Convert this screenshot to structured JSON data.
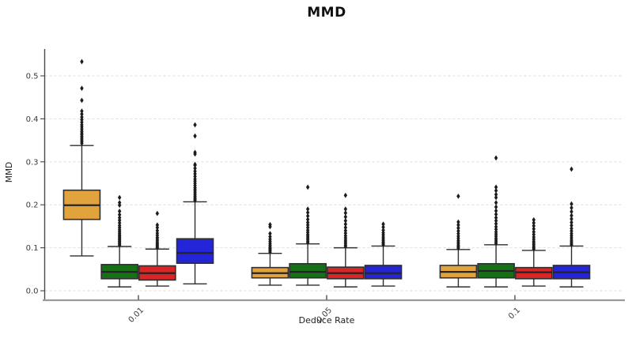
{
  "page": {
    "title": "MMD"
  },
  "chart_data": {
    "type": "boxplot",
    "title": "MMD",
    "xlabel": "Deduce Rate",
    "ylabel": "MMD",
    "categories": [
      "0.01",
      "0.05",
      "0.1"
    ],
    "yticks": [
      "0.0",
      "0.1",
      "0.2",
      "0.3",
      "0.4",
      "0.5"
    ],
    "ylim": [
      -0.022,
      0.5625
    ],
    "grid": "horizontal-dashed",
    "legend_position": "none",
    "colors": {
      "grid": "#dcdcdc",
      "spine_left": "#4a4a4a",
      "spine_bottom": "#9a9a9a",
      "box_edge": "#2f2f2f",
      "median": "#242424",
      "outlier": "#1c1c1c",
      "tick_text": "#3a3a3a"
    },
    "series": [
      {
        "name": "series-1-orange",
        "color": "#E2A33D",
        "boxes": [
          {
            "whislo": 0.081,
            "q1": 0.166,
            "med": 0.199,
            "q3": 0.234,
            "whishi": 0.338,
            "outliers": [
              0.343,
              0.347,
              0.351,
              0.355,
              0.359,
              0.363,
              0.367,
              0.371,
              0.376,
              0.381,
              0.386,
              0.392,
              0.398,
              0.404,
              0.411,
              0.418,
              0.443,
              0.471,
              0.533
            ]
          },
          {
            "whislo": 0.013,
            "q1": 0.03,
            "med": 0.041,
            "q3": 0.054,
            "whishi": 0.087,
            "outliers": [
              0.09,
              0.093,
              0.096,
              0.099,
              0.102,
              0.106,
              0.11,
              0.115,
              0.12,
              0.126,
              0.133,
              0.149,
              0.154
            ]
          },
          {
            "whislo": 0.009,
            "q1": 0.03,
            "med": 0.044,
            "q3": 0.059,
            "whishi": 0.096,
            "outliers": [
              0.099,
              0.102,
              0.105,
              0.109,
              0.113,
              0.117,
              0.122,
              0.127,
              0.133,
              0.139,
              0.146,
              0.153,
              0.16,
              0.22
            ]
          }
        ]
      },
      {
        "name": "series-2-green",
        "color": "#177017",
        "boxes": [
          {
            "whislo": 0.009,
            "q1": 0.028,
            "med": 0.044,
            "q3": 0.061,
            "whishi": 0.103,
            "outliers": [
              0.106,
              0.109,
              0.112,
              0.115,
              0.118,
              0.121,
              0.124,
              0.127,
              0.13,
              0.134,
              0.138,
              0.142,
              0.147,
              0.152,
              0.158,
              0.164,
              0.17,
              0.177,
              0.185,
              0.199,
              0.205,
              0.217
            ]
          },
          {
            "whislo": 0.013,
            "q1": 0.03,
            "med": 0.044,
            "q3": 0.063,
            "whishi": 0.109,
            "outliers": [
              0.112,
              0.115,
              0.119,
              0.123,
              0.127,
              0.131,
              0.136,
              0.141,
              0.147,
              0.153,
              0.159,
              0.166,
              0.174,
              0.182,
              0.19,
              0.241
            ]
          },
          {
            "whislo": 0.009,
            "q1": 0.03,
            "med": 0.046,
            "q3": 0.063,
            "whishi": 0.107,
            "outliers": [
              0.11,
              0.114,
              0.118,
              0.122,
              0.127,
              0.132,
              0.137,
              0.143,
              0.149,
              0.156,
              0.163,
              0.17,
              0.178,
              0.186,
              0.195,
              0.205,
              0.217,
              0.224,
              0.233,
              0.241,
              0.309
            ]
          }
        ]
      },
      {
        "name": "series-3-red",
        "color": "#D92525",
        "boxes": [
          {
            "whislo": 0.011,
            "q1": 0.025,
            "med": 0.041,
            "q3": 0.058,
            "whishi": 0.097,
            "outliers": [
              0.1,
              0.103,
              0.106,
              0.109,
              0.112,
              0.116,
              0.12,
              0.124,
              0.129,
              0.134,
              0.14,
              0.147,
              0.153,
              0.18
            ]
          },
          {
            "whislo": 0.009,
            "q1": 0.028,
            "med": 0.041,
            "q3": 0.055,
            "whishi": 0.1,
            "outliers": [
              0.103,
              0.106,
              0.11,
              0.114,
              0.118,
              0.123,
              0.128,
              0.134,
              0.14,
              0.147,
              0.155,
              0.163,
              0.172,
              0.181,
              0.19,
              0.222
            ]
          },
          {
            "whislo": 0.011,
            "q1": 0.028,
            "med": 0.043,
            "q3": 0.054,
            "whishi": 0.094,
            "outliers": [
              0.097,
              0.1,
              0.103,
              0.107,
              0.111,
              0.115,
              0.12,
              0.125,
              0.131,
              0.137,
              0.144,
              0.151,
              0.158,
              0.165
            ]
          }
        ]
      },
      {
        "name": "series-4-blue",
        "color": "#2424D9",
        "boxes": [
          {
            "whislo": 0.016,
            "q1": 0.064,
            "med": 0.088,
            "q3": 0.121,
            "whishi": 0.207,
            "outliers": [
              0.21,
              0.213,
              0.216,
              0.22,
              0.224,
              0.228,
              0.232,
              0.236,
              0.24,
              0.245,
              0.25,
              0.255,
              0.26,
              0.266,
              0.272,
              0.278,
              0.285,
              0.292,
              0.294,
              0.318,
              0.322,
              0.36,
              0.386
            ]
          },
          {
            "whislo": 0.011,
            "q1": 0.028,
            "med": 0.041,
            "q3": 0.059,
            "whishi": 0.104,
            "outliers": [
              0.107,
              0.11,
              0.113,
              0.117,
              0.121,
              0.125,
              0.13,
              0.135,
              0.141,
              0.148,
              0.155
            ]
          },
          {
            "whislo": 0.009,
            "q1": 0.028,
            "med": 0.043,
            "q3": 0.059,
            "whishi": 0.104,
            "outliers": [
              0.107,
              0.11,
              0.114,
              0.118,
              0.123,
              0.128,
              0.133,
              0.139,
              0.145,
              0.152,
              0.159,
              0.167,
              0.175,
              0.184,
              0.193,
              0.202,
              0.283
            ]
          }
        ]
      }
    ]
  }
}
